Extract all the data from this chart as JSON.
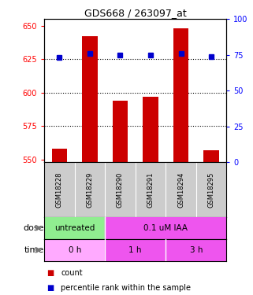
{
  "title": "GDS668 / 263097_at",
  "samples": [
    "GSM18228",
    "GSM18229",
    "GSM18290",
    "GSM18291",
    "GSM18294",
    "GSM18295"
  ],
  "bar_values": [
    558,
    642,
    594,
    597,
    648,
    557
  ],
  "percentile_values": [
    73,
    76,
    75,
    75,
    76,
    74
  ],
  "bar_color": "#cc0000",
  "dot_color": "#0000cc",
  "ylim_left": [
    548,
    655
  ],
  "yticks_left": [
    550,
    575,
    600,
    625,
    650
  ],
  "ylim_right": [
    0,
    100
  ],
  "yticks_right": [
    0,
    25,
    50,
    75,
    100
  ],
  "dose_labels": [
    {
      "text": "untreated",
      "start": 0,
      "end": 2,
      "color": "#90ee90"
    },
    {
      "text": "0.1 uM IAA",
      "start": 2,
      "end": 6,
      "color": "#ee55ee"
    }
  ],
  "time_colors": [
    "#ffaaff",
    "#ee55ee",
    "#ee55ee"
  ],
  "time_labels": [
    {
      "text": "0 h",
      "start": 0,
      "end": 2,
      "color": "#ffaaff"
    },
    {
      "text": "1 h",
      "start": 2,
      "end": 4,
      "color": "#ee55ee"
    },
    {
      "text": "3 h",
      "start": 4,
      "end": 6,
      "color": "#ee55ee"
    }
  ],
  "dose_arrow_label": "dose",
  "time_arrow_label": "time",
  "legend_count_label": "count",
  "legend_pct_label": "percentile rank within the sample",
  "sample_bg": "#cccccc",
  "grid_dotted_at": [
    575,
    600,
    625
  ],
  "bar_bottom": 548
}
